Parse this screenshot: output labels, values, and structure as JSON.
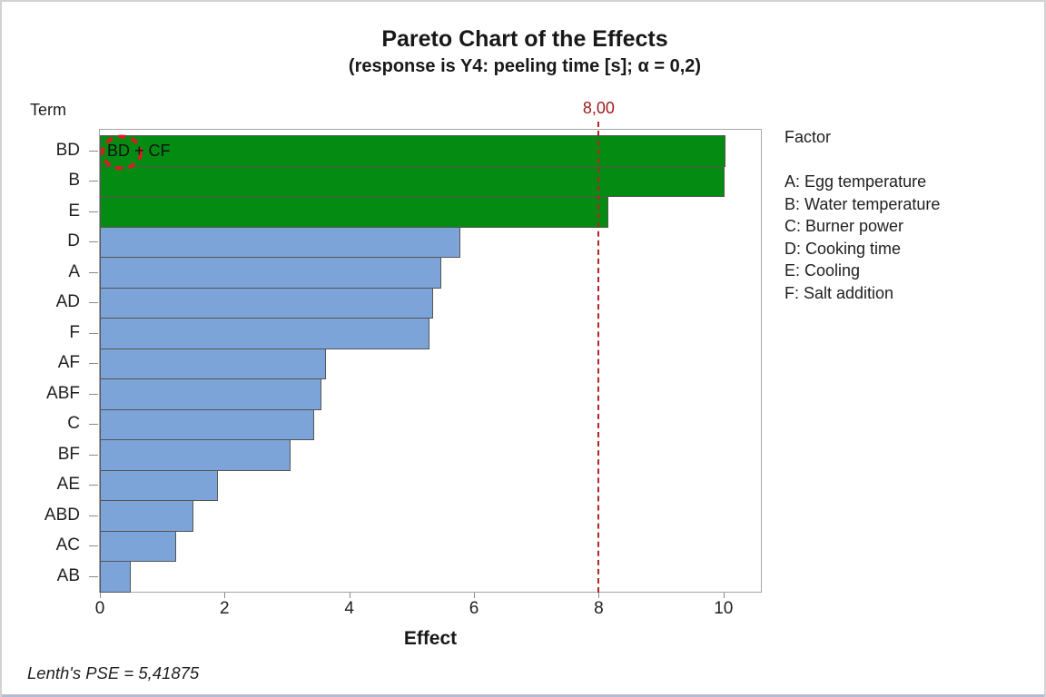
{
  "colors": {
    "significant_bar": "#048b12",
    "nonsignificant_bar": "#7ca4d8",
    "bar_border": "#555555",
    "reference_line": "#b22525",
    "reference_label": "#a01c1c",
    "annotation_circle": "#d62020"
  },
  "chart_data": {
    "type": "bar",
    "orientation": "horizontal",
    "title": "Pareto Chart of the Effects",
    "subtitle": "(response is Y4: peeling time [s]; α = 0,2)",
    "xlabel": "Effect",
    "ylabel": "Term",
    "categories": [
      "BD",
      "B",
      "E",
      "D",
      "A",
      "AD",
      "F",
      "AF",
      "ABF",
      "C",
      "BF",
      "AE",
      "ABD",
      "AC",
      "AB"
    ],
    "values": [
      10.03,
      10.02,
      8.16,
      5.78,
      5.47,
      5.35,
      5.29,
      3.63,
      3.56,
      3.43,
      3.06,
      1.9,
      1.5,
      1.22,
      0.49
    ],
    "significant_categories": [
      "BD",
      "B",
      "E"
    ],
    "xlim": [
      0,
      10.6
    ],
    "xticks": [
      0,
      2,
      4,
      6,
      8,
      10
    ],
    "grid": false,
    "reference_line": {
      "value": 8.0,
      "label": "8,00"
    },
    "annotation": {
      "text": "BD + CF",
      "circled_term": "BD"
    },
    "legend": {
      "title": "Factor",
      "position": "right",
      "items": [
        "A: Egg temperature",
        "B: Water temperature",
        "C: Burner power",
        "D: Cooking time",
        "E: Cooling",
        "F: Salt addition"
      ]
    },
    "footnote": "Lenth's PSE = 5,41875"
  }
}
